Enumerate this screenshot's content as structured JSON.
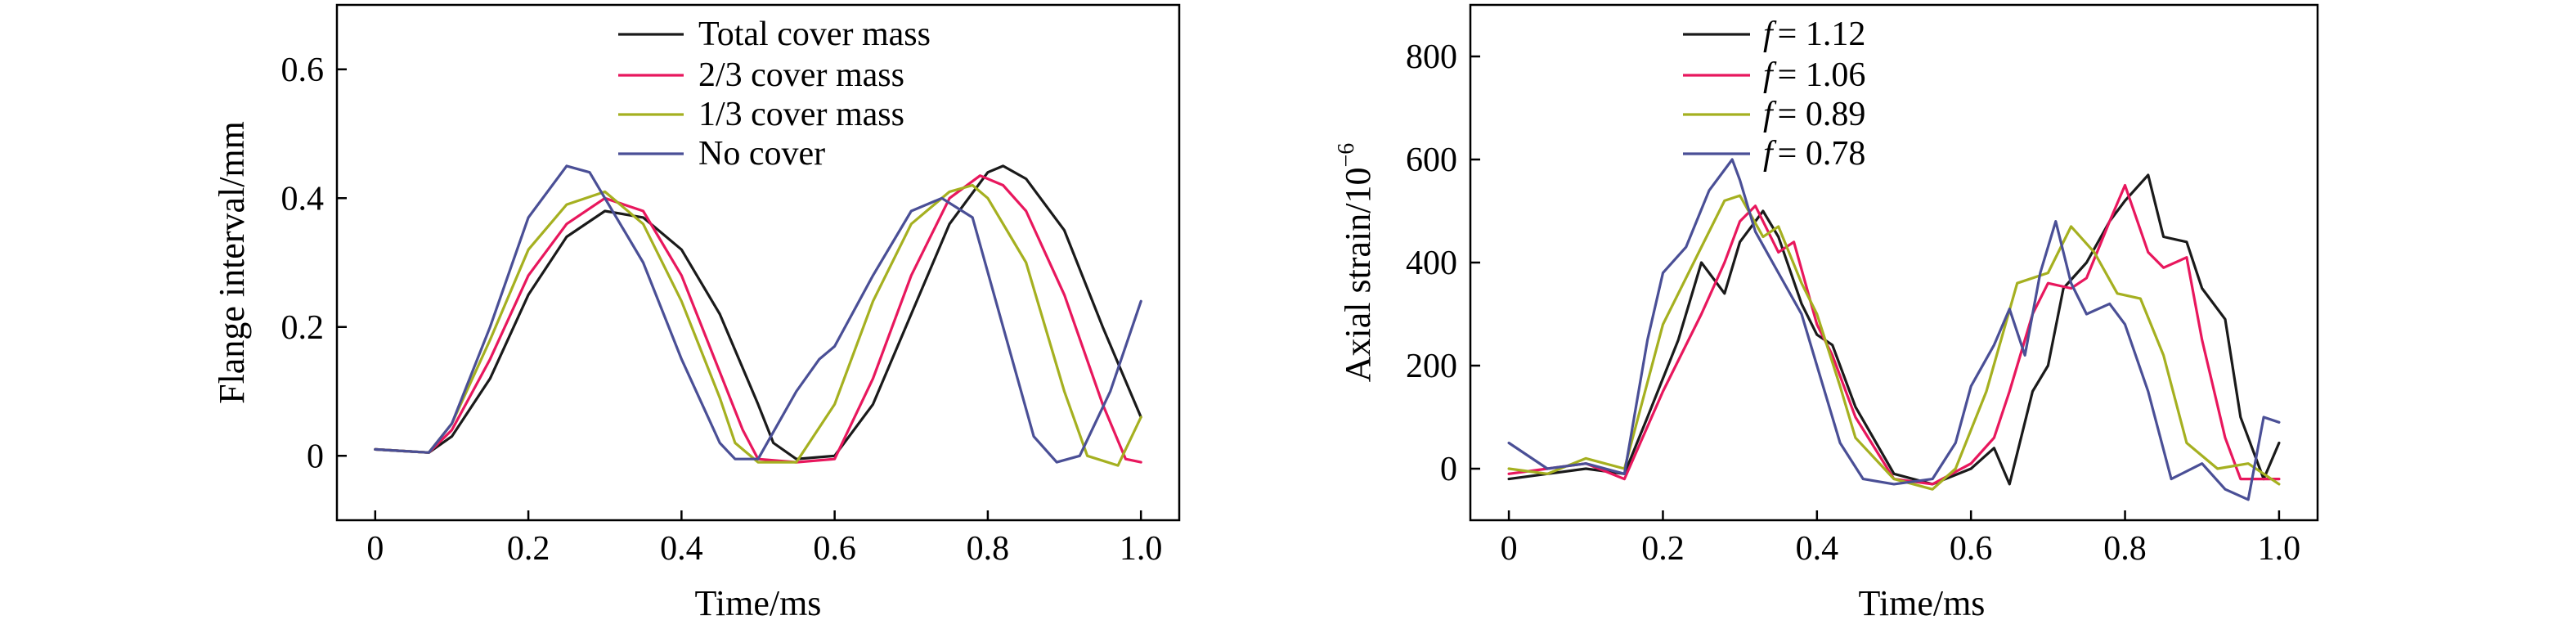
{
  "colors": {
    "black": "#1a1a1a",
    "red": "#e8175d",
    "olive": "#a5b020",
    "blue": "#4a4f96",
    "gray": "#8a8a8a",
    "axis": "#000000"
  },
  "chart_data": [
    {
      "type": "line",
      "title": "",
      "xlabel": "Time/ms",
      "ylabel": "Flange interval/mm",
      "xlim": [
        -0.05,
        1.05
      ],
      "ylim": [
        -0.1,
        0.7
      ],
      "xticks": [
        0,
        0.2,
        0.4,
        0.6,
        0.8,
        1.0
      ],
      "xtick_labels": [
        "0",
        "0.2",
        "0.4",
        "0.6",
        "0.8",
        "1.0"
      ],
      "yticks": [
        0,
        0.2,
        0.4,
        0.6
      ],
      "ytick_labels": [
        "0",
        "0.2",
        "0.4",
        "0.6"
      ],
      "grid": false,
      "legend_position": "top-center",
      "series": [
        {
          "name": "Total cover mass",
          "color": "black",
          "x": [
            0,
            0.07,
            0.1,
            0.15,
            0.2,
            0.25,
            0.3,
            0.35,
            0.4,
            0.45,
            0.5,
            0.52,
            0.55,
            0.6,
            0.65,
            0.7,
            0.75,
            0.8,
            0.82,
            0.85,
            0.9,
            0.95,
            1.0
          ],
          "y": [
            0.01,
            0.005,
            0.03,
            0.12,
            0.25,
            0.34,
            0.38,
            0.37,
            0.32,
            0.22,
            0.08,
            0.02,
            -0.005,
            0.0,
            0.08,
            0.22,
            0.36,
            0.44,
            0.45,
            0.43,
            0.35,
            0.2,
            0.06
          ]
        },
        {
          "name": "2/3 cover mass",
          "color": "red",
          "x": [
            0,
            0.07,
            0.1,
            0.15,
            0.2,
            0.25,
            0.3,
            0.35,
            0.4,
            0.45,
            0.48,
            0.5,
            0.55,
            0.6,
            0.65,
            0.7,
            0.75,
            0.79,
            0.82,
            0.85,
            0.9,
            0.95,
            0.98,
            1.0
          ],
          "y": [
            0.01,
            0.005,
            0.04,
            0.15,
            0.28,
            0.36,
            0.4,
            0.38,
            0.28,
            0.13,
            0.04,
            -0.005,
            -0.01,
            -0.005,
            0.12,
            0.28,
            0.4,
            0.435,
            0.42,
            0.38,
            0.25,
            0.08,
            -0.005,
            -0.01
          ]
        },
        {
          "name": "1/3 cover mass",
          "color": "olive",
          "x": [
            0,
            0.07,
            0.1,
            0.15,
            0.2,
            0.25,
            0.3,
            0.35,
            0.4,
            0.45,
            0.47,
            0.5,
            0.55,
            0.6,
            0.65,
            0.7,
            0.75,
            0.78,
            0.8,
            0.85,
            0.9,
            0.93,
            0.97,
            1.0
          ],
          "y": [
            0.01,
            0.005,
            0.05,
            0.18,
            0.32,
            0.39,
            0.41,
            0.36,
            0.24,
            0.09,
            0.02,
            -0.01,
            -0.01,
            0.08,
            0.24,
            0.36,
            0.41,
            0.42,
            0.4,
            0.3,
            0.1,
            0.0,
            -0.015,
            0.06
          ]
        },
        {
          "name": "No cover",
          "color": "blue",
          "x": [
            0,
            0.07,
            0.1,
            0.15,
            0.2,
            0.25,
            0.28,
            0.3,
            0.35,
            0.4,
            0.45,
            0.47,
            0.5,
            0.55,
            0.58,
            0.6,
            0.65,
            0.7,
            0.74,
            0.78,
            0.82,
            0.86,
            0.89,
            0.92,
            0.96,
            1.0
          ],
          "y": [
            0.01,
            0.005,
            0.05,
            0.2,
            0.37,
            0.45,
            0.44,
            0.4,
            0.3,
            0.15,
            0.02,
            -0.005,
            -0.005,
            0.1,
            0.15,
            0.17,
            0.28,
            0.38,
            0.4,
            0.37,
            0.2,
            0.03,
            -0.01,
            0.0,
            0.1,
            0.24
          ]
        }
      ]
    },
    {
      "type": "line",
      "title": "",
      "xlabel": "Time/ms",
      "ylabel": "Axial strain/10",
      "ylabel_superscript": "−6",
      "xlim": [
        -0.05,
        1.05
      ],
      "ylim": [
        -100,
        900
      ],
      "xticks": [
        0,
        0.2,
        0.4,
        0.6,
        0.8,
        1.0
      ],
      "xtick_labels": [
        "0",
        "0.2",
        "0.4",
        "0.6",
        "0.8",
        "1.0"
      ],
      "yticks": [
        0,
        200,
        400,
        600,
        800
      ],
      "ytick_labels": [
        "0",
        "200",
        "400",
        "600",
        "800"
      ],
      "grid": false,
      "legend_position": "top-center",
      "series": [
        {
          "name": "f = 1.12",
          "legend_var": "f",
          "legend_value": "= 1.12",
          "color": "black",
          "x": [
            0,
            0.05,
            0.1,
            0.15,
            0.18,
            0.22,
            0.25,
            0.28,
            0.3,
            0.33,
            0.35,
            0.38,
            0.4,
            0.42,
            0.45,
            0.5,
            0.55,
            0.6,
            0.63,
            0.65,
            0.68,
            0.7,
            0.72,
            0.75,
            0.78,
            0.8,
            0.83,
            0.85,
            0.88,
            0.9,
            0.93,
            0.95,
            0.98,
            1.0
          ],
          "y": [
            -20,
            -10,
            0,
            -10,
            100,
            250,
            400,
            340,
            440,
            500,
            450,
            320,
            260,
            240,
            120,
            -10,
            -30,
            0,
            40,
            -30,
            150,
            200,
            350,
            400,
            480,
            520,
            570,
            450,
            440,
            350,
            290,
            100,
            -20,
            50
          ]
        },
        {
          "name": "f = 1.06",
          "legend_var": "f",
          "legend_value": "= 1.06",
          "color": "red",
          "x": [
            0,
            0.05,
            0.1,
            0.15,
            0.2,
            0.25,
            0.28,
            0.3,
            0.32,
            0.35,
            0.37,
            0.4,
            0.42,
            0.45,
            0.5,
            0.55,
            0.6,
            0.63,
            0.65,
            0.68,
            0.7,
            0.73,
            0.75,
            0.78,
            0.8,
            0.83,
            0.85,
            0.88,
            0.9,
            0.93,
            0.95,
            1.0
          ],
          "y": [
            -10,
            0,
            10,
            -20,
            150,
            300,
            400,
            480,
            510,
            420,
            440,
            280,
            220,
            100,
            -20,
            -30,
            10,
            60,
            150,
            300,
            360,
            350,
            370,
            480,
            550,
            420,
            390,
            410,
            250,
            60,
            -20,
            -20
          ]
        },
        {
          "name": "f = 0.89",
          "legend_var": "f",
          "legend_value": "= 0.89",
          "color": "olive",
          "x": [
            0,
            0.05,
            0.1,
            0.15,
            0.2,
            0.25,
            0.28,
            0.3,
            0.33,
            0.35,
            0.38,
            0.4,
            0.43,
            0.45,
            0.5,
            0.55,
            0.58,
            0.62,
            0.66,
            0.7,
            0.73,
            0.76,
            0.79,
            0.82,
            0.85,
            0.88,
            0.92,
            0.96,
            1.0
          ],
          "y": [
            0,
            -10,
            20,
            0,
            280,
            430,
            520,
            530,
            450,
            470,
            360,
            300,
            160,
            60,
            -20,
            -40,
            0,
            150,
            360,
            380,
            470,
            420,
            340,
            330,
            220,
            50,
            0,
            10,
            -30
          ]
        },
        {
          "name": "f = 0.78",
          "legend_var": "f",
          "legend_value": "= 0.78",
          "color": "blue",
          "x": [
            0,
            0.05,
            0.1,
            0.15,
            0.18,
            0.2,
            0.23,
            0.26,
            0.29,
            0.3,
            0.32,
            0.35,
            0.38,
            0.4,
            0.43,
            0.46,
            0.5,
            0.55,
            0.58,
            0.6,
            0.63,
            0.65,
            0.67,
            0.69,
            0.71,
            0.73,
            0.75,
            0.78,
            0.8,
            0.83,
            0.86,
            0.9,
            0.93,
            0.96,
            0.98,
            1.0
          ],
          "y": [
            50,
            0,
            10,
            -10,
            250,
            380,
            430,
            540,
            600,
            560,
            460,
            380,
            300,
            200,
            50,
            -20,
            -30,
            -20,
            50,
            160,
            240,
            310,
            220,
            380,
            480,
            360,
            300,
            320,
            280,
            150,
            -20,
            10,
            -40,
            -60,
            100,
            90
          ]
        }
      ]
    }
  ]
}
